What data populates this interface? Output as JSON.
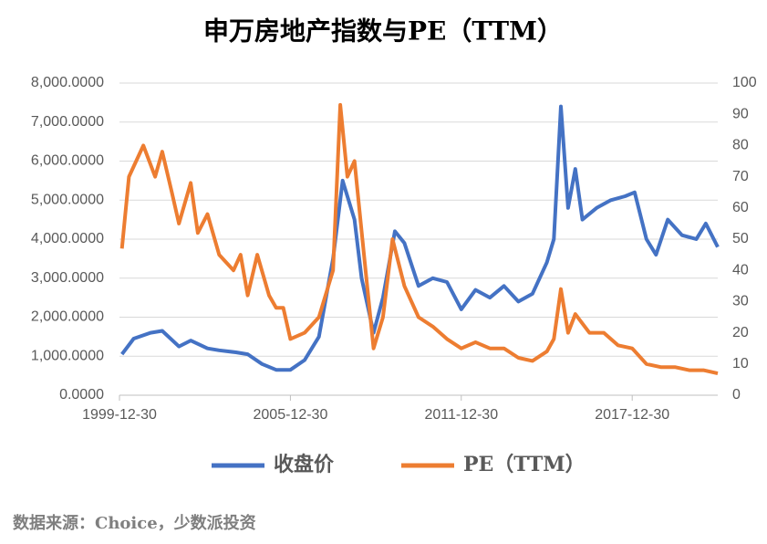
{
  "chart_data": {
    "type": "line",
    "title": "申万房地产指数与PE（TTM）",
    "source": "数据来源：Choice，少数派投资",
    "xlim": [
      "1999-12-30",
      "2020-12-31"
    ],
    "xticks": [
      "1999-12-30",
      "2005-12-30",
      "2011-12-30",
      "2017-12-30"
    ],
    "ylim": [
      0,
      8000
    ],
    "yticks": [
      {
        "value": 0,
        "label": "0.0000"
      },
      {
        "value": 1000,
        "label": "1,000.0000"
      },
      {
        "value": 2000,
        "label": "2,000.0000"
      },
      {
        "value": 3000,
        "label": "3,000.0000"
      },
      {
        "value": 4000,
        "label": "4,000.0000"
      },
      {
        "value": 5000,
        "label": "5,000.0000"
      },
      {
        "value": 6000,
        "label": "6,000.0000"
      },
      {
        "value": 7000,
        "label": "7,000.0000"
      },
      {
        "value": 8000,
        "label": "8,000.0000"
      }
    ],
    "y2lim": [
      0,
      100
    ],
    "y2ticks": [
      0,
      10,
      20,
      30,
      40,
      50,
      60,
      70,
      80,
      90,
      100
    ],
    "grid": true,
    "legend": "bottom",
    "series": [
      {
        "name": "收盘价",
        "color": "#4472c4",
        "x": [
          "2000-01-31",
          "2000-06-30",
          "2001-01-31",
          "2001-06-30",
          "2002-01-31",
          "2002-06-30",
          "2003-01-31",
          "2003-06-30",
          "2004-01-31",
          "2004-06-30",
          "2004-12-31",
          "2005-06-30",
          "2005-12-30",
          "2006-06-30",
          "2006-12-31",
          "2007-06-30",
          "2007-10-31",
          "2008-03-31",
          "2008-06-30",
          "2008-11-30",
          "2009-03-31",
          "2009-08-31",
          "2009-12-31",
          "2010-06-30",
          "2010-12-31",
          "2011-06-30",
          "2011-12-30",
          "2012-06-30",
          "2012-12-31",
          "2013-06-30",
          "2013-12-31",
          "2014-06-30",
          "2014-12-31",
          "2015-03-31",
          "2015-06-30",
          "2015-09-30",
          "2015-12-31",
          "2016-03-31",
          "2016-09-30",
          "2017-03-31",
          "2017-09-30",
          "2018-01-31",
          "2018-06-30",
          "2018-10-31",
          "2019-03-31",
          "2019-09-30",
          "2020-03-31",
          "2020-07-31",
          "2020-12-31"
        ],
        "values": [
          1050,
          1450,
          1600,
          1650,
          1250,
          1400,
          1200,
          1150,
          1100,
          1050,
          800,
          650,
          650,
          900,
          1500,
          3500,
          5500,
          4500,
          3000,
          1600,
          2500,
          4200,
          3900,
          2800,
          3000,
          2900,
          2200,
          2700,
          2500,
          2800,
          2400,
          2600,
          3400,
          4000,
          7400,
          4800,
          5800,
          4500,
          4800,
          5000,
          5100,
          5200,
          4000,
          3600,
          4500,
          4100,
          4000,
          4400,
          3800
        ]
      },
      {
        "name": "PE（TTM）",
        "color": "#ed7d31",
        "axis": "y2",
        "x": [
          "2000-01-31",
          "2000-04-30",
          "2000-10-31",
          "2001-03-31",
          "2001-06-30",
          "2001-10-31",
          "2002-01-31",
          "2002-06-30",
          "2002-09-30",
          "2003-01-31",
          "2003-06-30",
          "2003-12-31",
          "2004-03-31",
          "2004-06-30",
          "2004-10-31",
          "2005-03-31",
          "2005-06-30",
          "2005-09-30",
          "2005-12-30",
          "2006-06-30",
          "2006-12-31",
          "2007-06-30",
          "2007-09-30",
          "2007-12-31",
          "2008-03-31",
          "2008-07-31",
          "2008-11-30",
          "2009-03-31",
          "2009-07-31",
          "2009-12-31",
          "2010-06-30",
          "2010-12-31",
          "2011-06-30",
          "2011-12-30",
          "2012-06-30",
          "2012-12-31",
          "2013-06-30",
          "2013-12-31",
          "2014-06-30",
          "2014-12-31",
          "2015-03-31",
          "2015-06-30",
          "2015-09-30",
          "2015-12-31",
          "2016-06-30",
          "2016-12-31",
          "2017-06-30",
          "2017-12-30",
          "2018-06-30",
          "2018-12-31",
          "2019-06-30",
          "2019-12-31",
          "2020-06-30",
          "2020-12-31"
        ],
        "values": [
          47,
          70,
          80,
          70,
          78,
          65,
          55,
          68,
          52,
          58,
          45,
          40,
          45,
          32,
          45,
          32,
          28,
          28,
          18,
          20,
          25,
          40,
          93,
          70,
          75,
          45,
          15,
          25,
          50,
          35,
          25,
          22,
          18,
          15,
          17,
          15,
          15,
          12,
          11,
          14,
          18,
          34,
          20,
          26,
          20,
          20,
          16,
          15,
          10,
          9,
          9,
          8,
          8,
          7
        ]
      }
    ]
  }
}
